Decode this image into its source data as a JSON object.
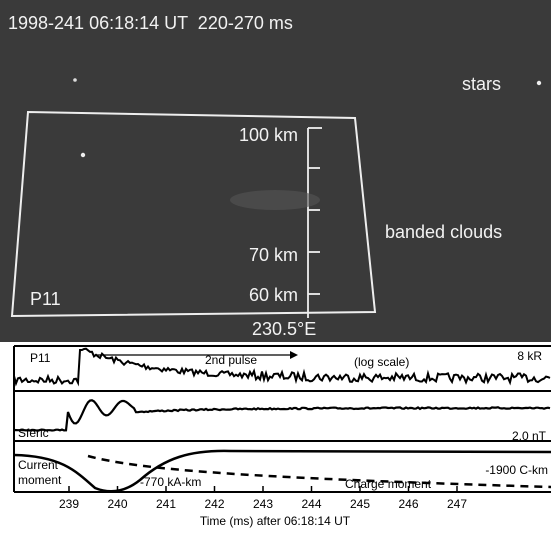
{
  "image": {
    "title": "1998-241 06:18:14 UT  220-270 ms",
    "stars_label": "stars",
    "clouds_label": "banded clouds",
    "station": "P11",
    "altitude_labels": [
      "100 km",
      "70 km",
      "60 km"
    ],
    "longitude": "230.5°E"
  },
  "panels": {
    "p11": {
      "label": "P11",
      "pulse": "2nd pulse",
      "scale": "(log scale)",
      "unit": "8 kR"
    },
    "sferic": {
      "label": "Sferic",
      "unit": "2.0 nT"
    },
    "current": {
      "label": [
        "Current",
        "moment"
      ],
      "peak": "-770 kA-km",
      "charge": "Charge moment",
      "charge_value": "-1900 C-km"
    }
  },
  "axis": {
    "ticks": [
      "239",
      "240",
      "241",
      "242",
      "243",
      "244",
      "245",
      "246",
      "247"
    ],
    "title": "Time (ms) after 06:18:14 UT"
  }
}
